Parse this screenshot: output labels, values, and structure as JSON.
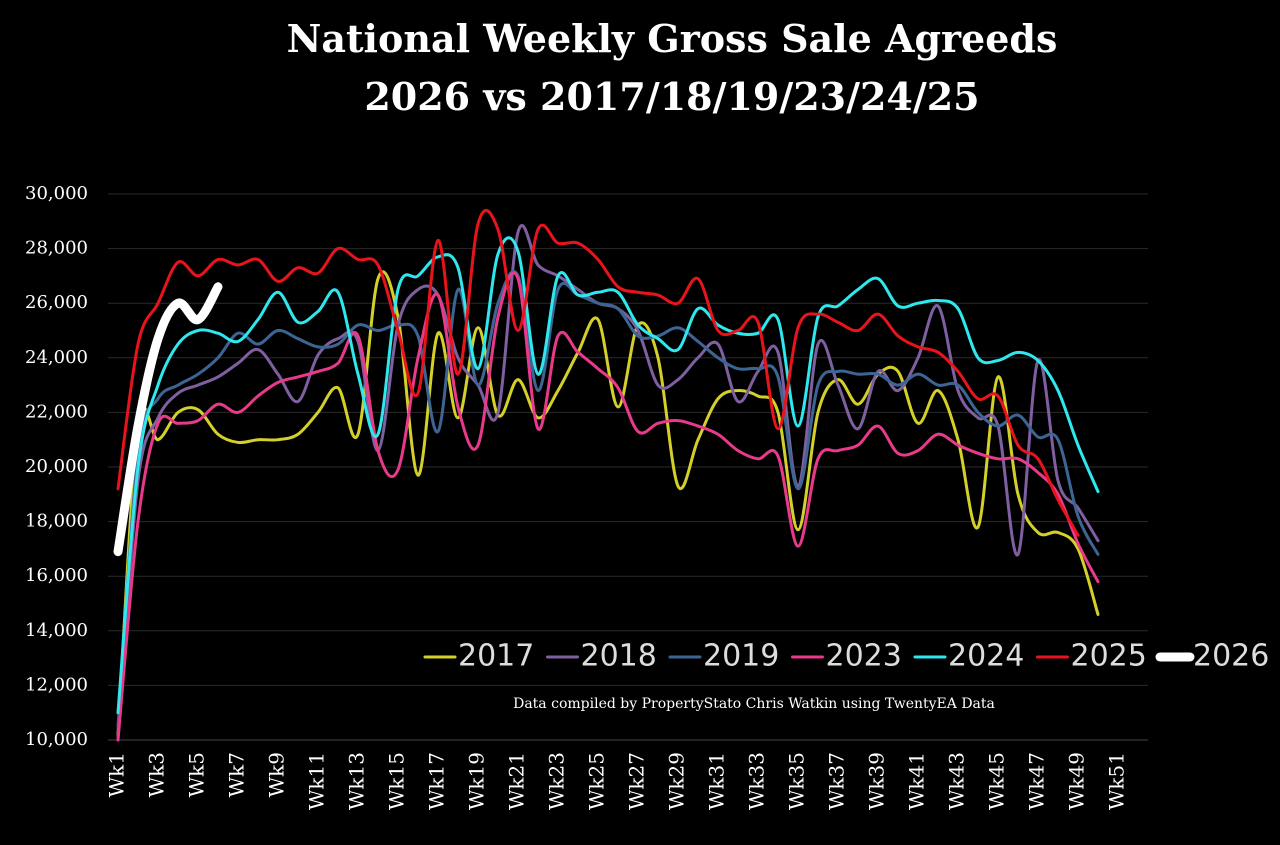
{
  "chart_data": {
    "type": "line",
    "title": "National Weekly Gross Sale Agreeds",
    "subtitle": "2026 vs 2017/18/19/23/24/25",
    "annotation": "Data compiled by PropertyStato Chris Watkin using TwentyEA Data",
    "categories": [
      "Wk1",
      null,
      "Wk3",
      null,
      "Wk5",
      null,
      "Wk7",
      null,
      "Wk9",
      null,
      "Wk11",
      null,
      "Wk13",
      null,
      "Wk15",
      null,
      "Wk17",
      null,
      "Wk19",
      null,
      "Wk21",
      null,
      "Wk23",
      null,
      "Wk25",
      null,
      "Wk27",
      null,
      "Wk29",
      null,
      "Wk31",
      null,
      "Wk33",
      null,
      "Wk35",
      null,
      "Wk37",
      null,
      "Wk39",
      null,
      "Wk41",
      null,
      "Wk43",
      null,
      "Wk45",
      null,
      "Wk47",
      null,
      "Wk49",
      null,
      "Wk51",
      null
    ],
    "ylim": [
      10000,
      30000
    ],
    "yticks": [
      {
        "value": 10000,
        "label": "10,000"
      },
      {
        "value": 12000,
        "label": "12,000"
      },
      {
        "value": 14000,
        "label": "14,000"
      },
      {
        "value": 16000,
        "label": "16,000"
      },
      {
        "value": 18000,
        "label": "18,000"
      },
      {
        "value": 20000,
        "label": "20,000"
      },
      {
        "value": 22000,
        "label": "22,000"
      },
      {
        "value": 24000,
        "label": "24,000"
      },
      {
        "value": 26000,
        "label": "26,000"
      },
      {
        "value": 28000,
        "label": "28,000"
      },
      {
        "value": 30000,
        "label": "30,000"
      }
    ],
    "grid": true,
    "legend": "bottom",
    "series": [
      {
        "name": "2017",
        "color": "#d4d02a",
        "values": [
          10200,
          21500,
          21000,
          22000,
          22100,
          21200,
          20900,
          21000,
          21000,
          21200,
          22000,
          22900,
          21200,
          26900,
          25500,
          19700,
          24900,
          21800,
          25100,
          21900,
          23200,
          21800,
          22800,
          24200,
          25400,
          22200,
          25200,
          24000,
          19300,
          21000,
          22500,
          22800,
          22600,
          22000,
          17700,
          22000,
          23200,
          22300,
          23400,
          23500,
          21600,
          22800,
          21000,
          17800,
          23300,
          19000,
          17600,
          17600,
          17000,
          14600,
          null,
          null
        ]
      },
      {
        "name": "2018",
        "color": "#7e5fa0",
        "values": [
          10100,
          19500,
          21800,
          22700,
          23000,
          23300,
          23800,
          24300,
          23400,
          22400,
          24100,
          24700,
          24600,
          20600,
          25200,
          26500,
          26300,
          24000,
          23000,
          22000,
          28600,
          27400,
          27000,
          26500,
          26000,
          25800,
          25000,
          23000,
          23200,
          24000,
          24500,
          22400,
          23500,
          24200,
          19300,
          24500,
          23000,
          21400,
          23500,
          22800,
          24000,
          25900,
          22800,
          21800,
          21500,
          16800,
          23900,
          19500,
          18500,
          17300,
          null,
          null
        ]
      },
      {
        "name": "2019",
        "color": "#3d6594",
        "values": [
          10500,
          20500,
          22500,
          23000,
          23400,
          24000,
          24900,
          24500,
          25000,
          24700,
          24400,
          24500,
          25200,
          25000,
          25200,
          24800,
          21300,
          26500,
          23000,
          26000,
          27000,
          22800,
          26500,
          26300,
          26000,
          25800,
          24800,
          24800,
          25100,
          24600,
          24000,
          23600,
          23600,
          23300,
          19200,
          23000,
          23500,
          23400,
          23400,
          23000,
          23400,
          23000,
          23000,
          22000,
          21500,
          21900,
          21100,
          21000,
          18200,
          16800,
          null,
          null
        ]
      },
      {
        "name": "2023",
        "color": "#e8398a",
        "values": [
          10000,
          18000,
          21600,
          21600,
          21700,
          22300,
          22000,
          22600,
          23100,
          23300,
          23500,
          23800,
          24800,
          20600,
          19900,
          24000,
          26300,
          22200,
          20800,
          25500,
          26900,
          21400,
          24800,
          24200,
          23600,
          22900,
          21300,
          21600,
          21700,
          21500,
          21200,
          20600,
          20300,
          20400,
          17100,
          20300,
          20600,
          20800,
          21500,
          20500,
          20600,
          21200,
          20800,
          20500,
          20300,
          20300,
          19800,
          19000,
          17200,
          15800,
          null,
          null
        ]
      },
      {
        "name": "2024",
        "color": "#2ee8ee",
        "values": [
          11000,
          20000,
          23000,
          24500,
          25000,
          24900,
          24600,
          25400,
          26400,
          25300,
          25700,
          26400,
          23400,
          21200,
          26500,
          27000,
          27700,
          27300,
          23600,
          27800,
          27900,
          23400,
          27000,
          26300,
          26400,
          26400,
          25200,
          24700,
          24300,
          25800,
          25200,
          24900,
          24900,
          25400,
          21500,
          25500,
          25900,
          26500,
          26900,
          25900,
          26000,
          26100,
          25800,
          24000,
          23900,
          24200,
          23900,
          22800,
          20800,
          19100,
          null,
          null
        ]
      },
      {
        "name": "2025",
        "color": "#e8141c",
        "values": [
          19200,
          24500,
          26000,
          27500,
          27000,
          27600,
          27400,
          27600,
          26800,
          27300,
          27100,
          28000,
          27600,
          27400,
          25000,
          22700,
          28300,
          23400,
          28900,
          28700,
          25000,
          28700,
          28200,
          28200,
          27600,
          26600,
          26400,
          26300,
          26000,
          26900,
          25000,
          25000,
          25300,
          21400,
          25100,
          25600,
          25300,
          25000,
          25600,
          24800,
          24400,
          24200,
          23500,
          22500,
          22600,
          20800,
          20300,
          18800,
          17500,
          null,
          null,
          null
        ]
      },
      {
        "name": "2026",
        "color": "#ffffff",
        "values": [
          16900,
          21500,
          24700,
          26000,
          25400,
          26600,
          null,
          null,
          null,
          null,
          null,
          null,
          null,
          null,
          null,
          null,
          null,
          null,
          null,
          null,
          null,
          null,
          null,
          null,
          null,
          null,
          null,
          null,
          null,
          null,
          null,
          null,
          null,
          null,
          null,
          null,
          null,
          null,
          null,
          null,
          null,
          null,
          null,
          null,
          null,
          null,
          null,
          null,
          null,
          null,
          null,
          null
        ]
      }
    ]
  }
}
